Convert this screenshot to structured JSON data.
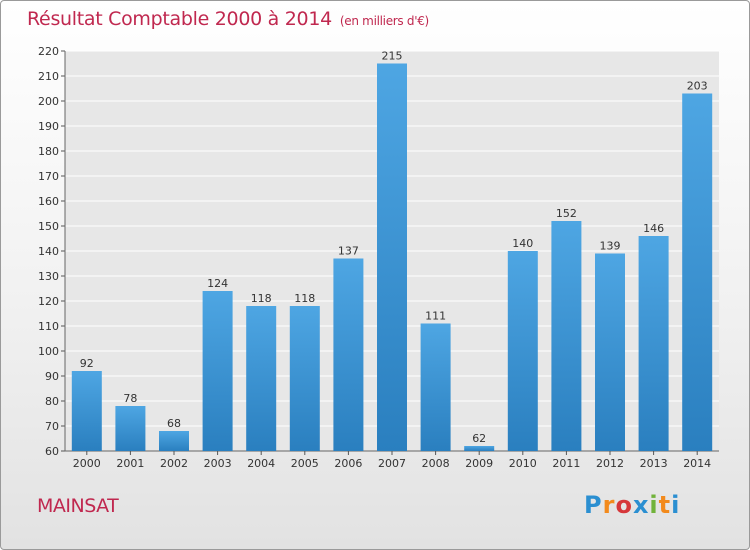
{
  "header": {
    "title": "Résultat Comptable 2000 à 2014",
    "unit": "(en milliers d'€)"
  },
  "footer": {
    "place": "MAINSAT",
    "brand_letters": [
      "P",
      "r",
      "o",
      "x",
      "i",
      "t",
      "i"
    ],
    "brand_colors": [
      "#2b8fd1",
      "#f28a1c",
      "#d6373a",
      "#2b8fd1",
      "#71b33b",
      "#f28a1c",
      "#2b8fd1"
    ]
  },
  "chart_data": {
    "type": "bar",
    "title": "Résultat Comptable 2000 à 2014",
    "subtitle": "(en milliers d'€)",
    "xlabel": "",
    "ylabel": "",
    "categories": [
      "2000",
      "2001",
      "2002",
      "2003",
      "2004",
      "2005",
      "2006",
      "2007",
      "2008",
      "2009",
      "2010",
      "2011",
      "2012",
      "2013",
      "2014"
    ],
    "values": [
      92,
      78,
      68,
      124,
      118,
      118,
      137,
      215,
      111,
      62,
      140,
      152,
      139,
      146,
      203
    ],
    "ylim": [
      60,
      220
    ],
    "yticks": [
      60,
      70,
      80,
      90,
      100,
      110,
      120,
      130,
      140,
      150,
      160,
      170,
      180,
      190,
      200,
      210,
      220
    ],
    "grid": true,
    "bar_color": "#4ea6e3",
    "bar_color_dark": "#2a7fbf"
  }
}
